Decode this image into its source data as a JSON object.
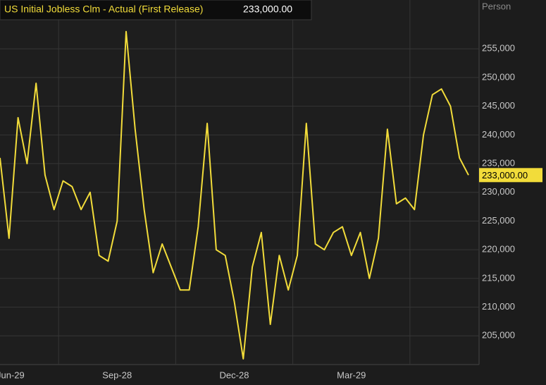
{
  "chart_data": {
    "type": "line",
    "title": "US Initial Jobless Clm - Actual (First Release)",
    "current": {
      "value": 233000,
      "label": "233,000.00"
    },
    "unit": "Person",
    "categories": [
      "Jun-29",
      null,
      null,
      null,
      null,
      null,
      null,
      null,
      null,
      null,
      null,
      null,
      null,
      "Sep-28",
      null,
      null,
      null,
      null,
      null,
      null,
      null,
      null,
      null,
      null,
      null,
      null,
      "Dec-28",
      null,
      null,
      null,
      null,
      null,
      null,
      null,
      null,
      null,
      null,
      null,
      null,
      "Mar-29",
      null,
      null,
      null,
      null,
      null,
      null,
      null,
      null,
      null,
      null,
      null,
      null,
      null
    ],
    "series": [
      {
        "name": "US Initial Jobless Clm - Actual (First Release)",
        "color": "#f2dc3a",
        "values": [
          236000,
          222000,
          243000,
          235000,
          249000,
          233000,
          227000,
          232000,
          231000,
          227000,
          230000,
          219000,
          218000,
          225000,
          258000,
          241000,
          227000,
          216000,
          221000,
          217000,
          213000,
          213000,
          224000,
          242000,
          220000,
          219000,
          211000,
          201000,
          217000,
          223000,
          207000,
          219000,
          213000,
          219000,
          242000,
          221000,
          220000,
          223000,
          224000,
          219000,
          223000,
          215000,
          222000,
          241000,
          228000,
          229000,
          227000,
          240000,
          247000,
          248000,
          245000,
          236000,
          233000
        ]
      }
    ],
    "ylim": [
      200000,
      263500
    ],
    "yticks": [
      {
        "value": 205000,
        "label": "205,000"
      },
      {
        "value": 210000,
        "label": "210,000"
      },
      {
        "value": 215000,
        "label": "215,000"
      },
      {
        "value": 220000,
        "label": "220,000"
      },
      {
        "value": 225000,
        "label": "225,000"
      },
      {
        "value": 230000,
        "label": "230,000"
      },
      {
        "value": 235000,
        "label": "235,000"
      },
      {
        "value": 240000,
        "label": "240,000"
      },
      {
        "value": 245000,
        "label": "245,000"
      },
      {
        "value": 250000,
        "label": "250,000"
      },
      {
        "value": 255000,
        "label": "255,000"
      }
    ],
    "grid": true
  }
}
